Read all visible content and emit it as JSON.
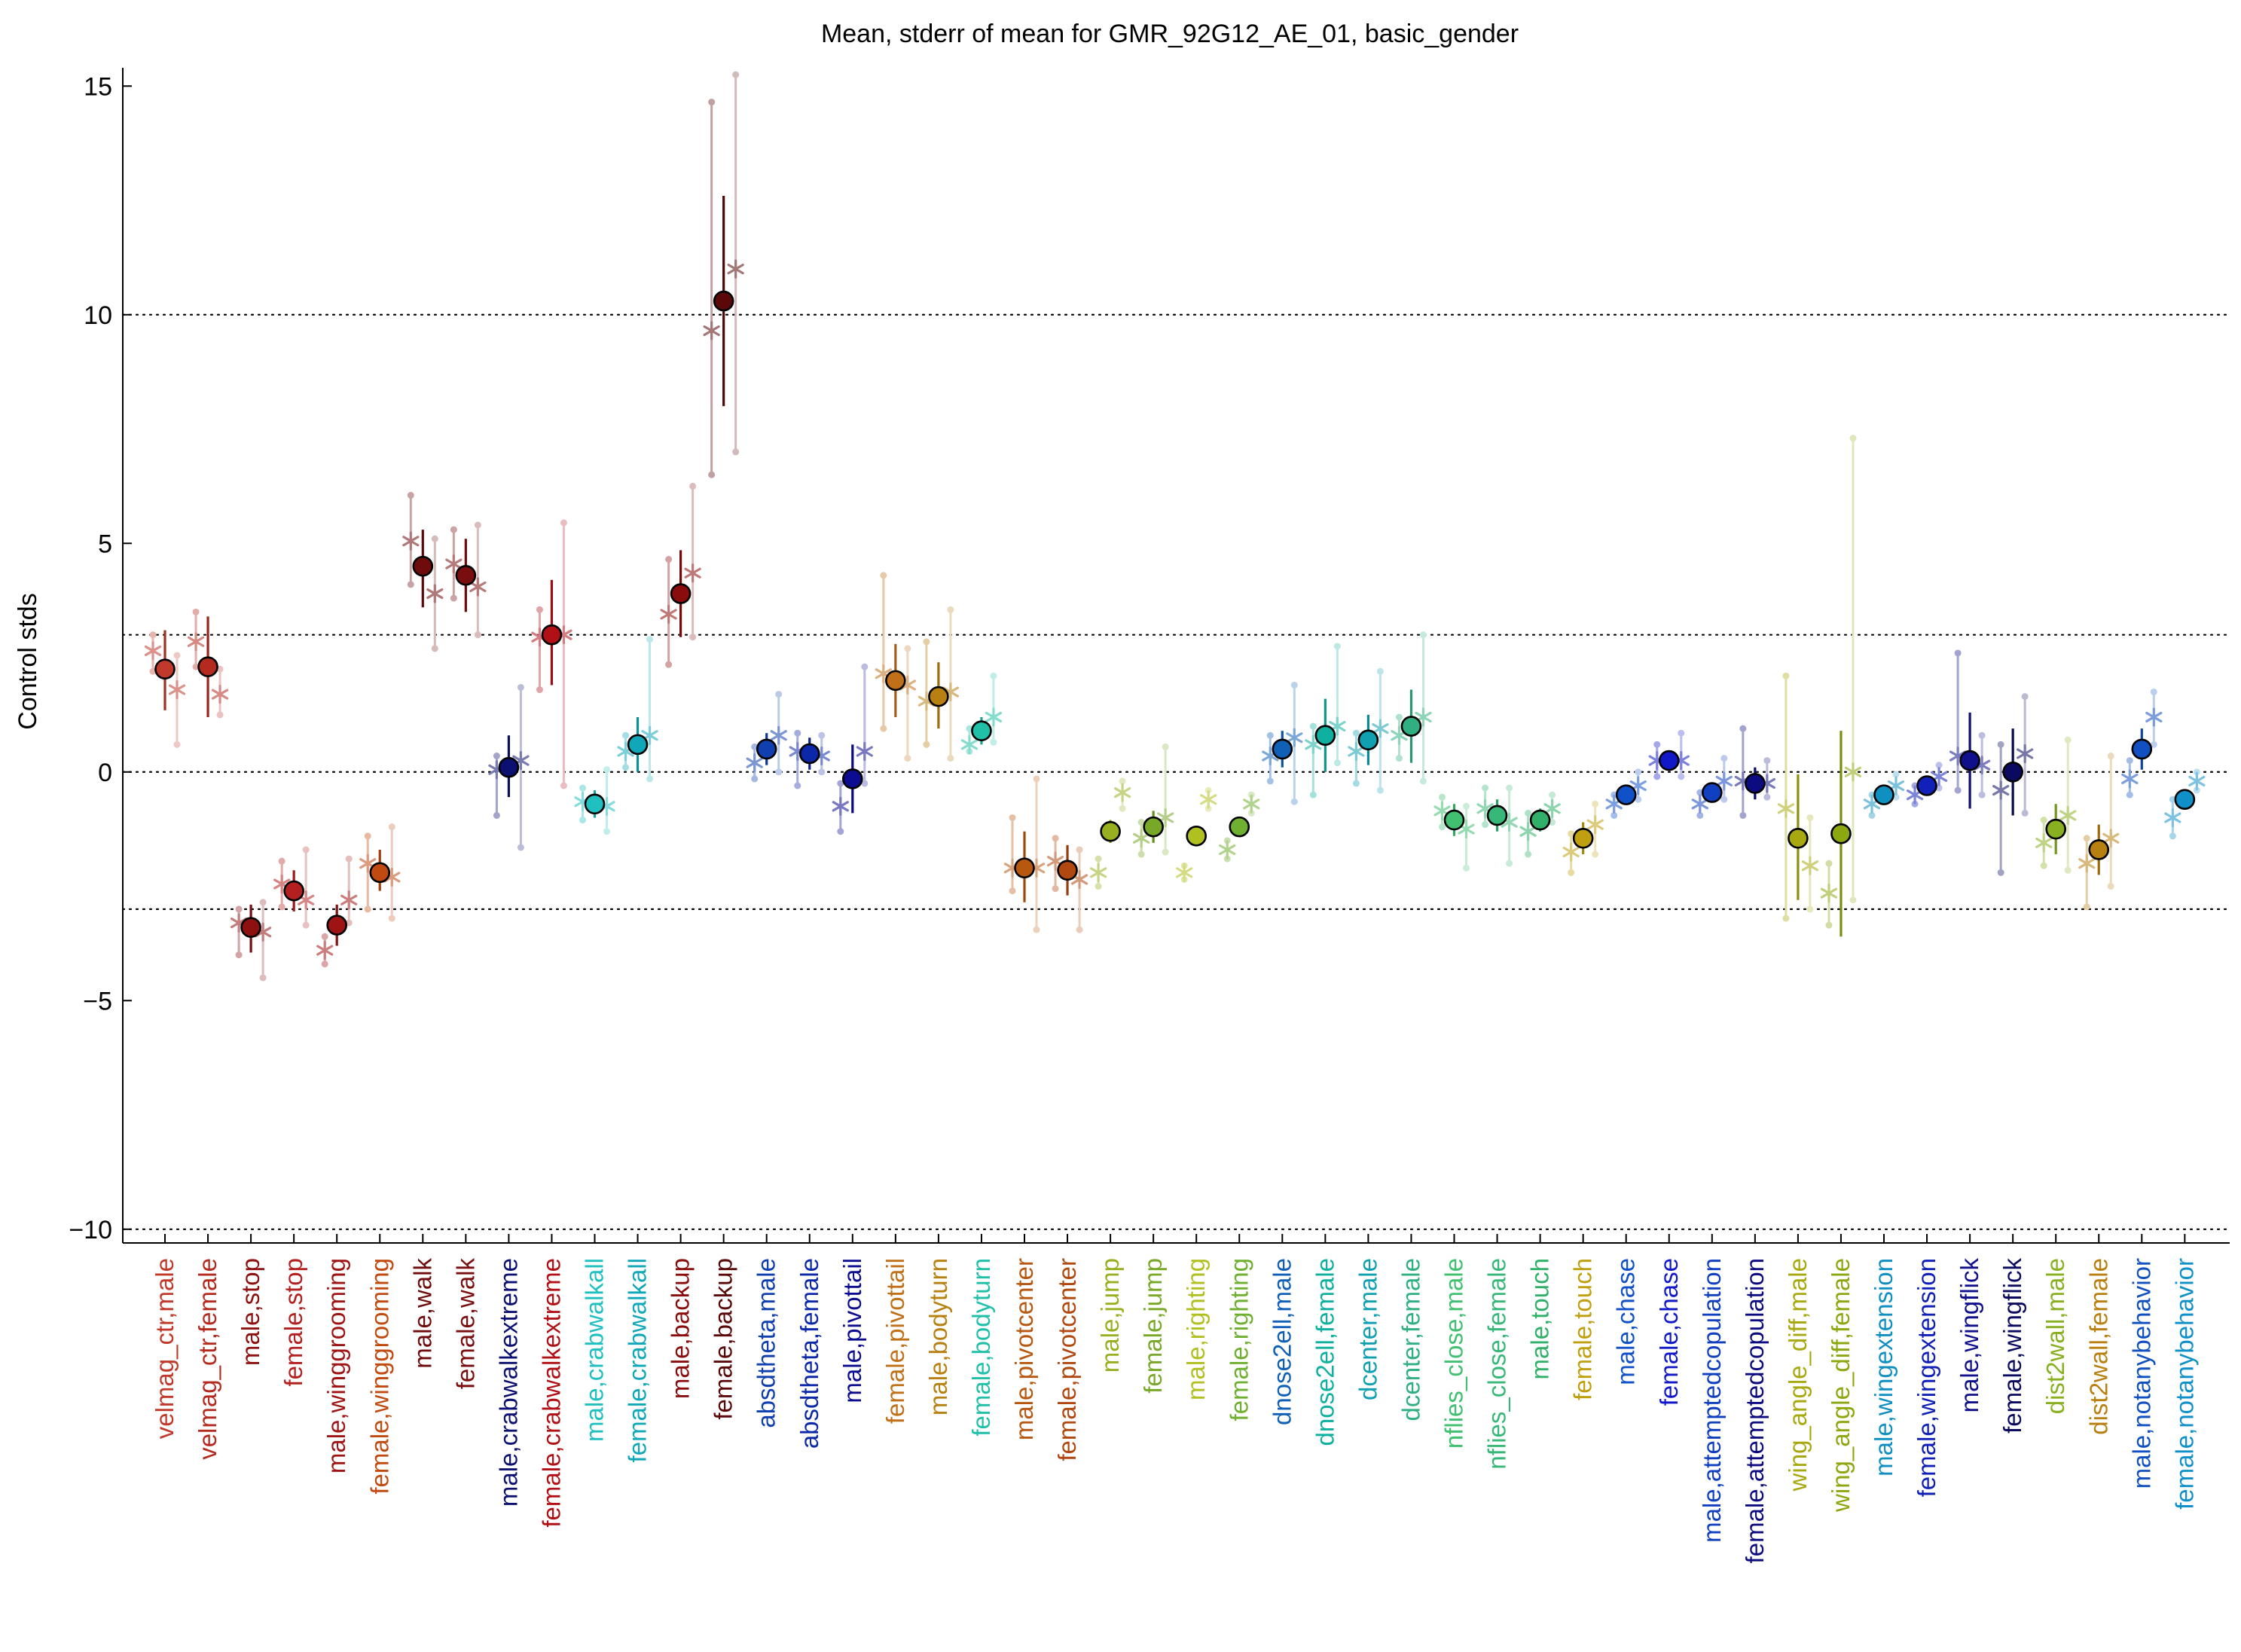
{
  "chart_data": {
    "type": "scatter",
    "title": "Mean, stderr of mean for GMR_92G12_AE_01, basic_gender",
    "xlabel": "",
    "ylabel": "Control stds",
    "ylim": [
      -10.3,
      15.4
    ],
    "yticks": [
      -10,
      -5,
      0,
      5,
      10,
      15
    ],
    "grid": "horizontal dotted lines at -10, -3, 0, 3, 10",
    "ref_lines": [
      -10,
      -3,
      0,
      3,
      10
    ],
    "legend": "none",
    "categories": [
      {
        "label": "velmag_ctr,male",
        "color": "#c0392b",
        "mean": 2.25,
        "lo": 1.35,
        "hi": 3.1,
        "sub": [
          [
            2.65,
            2.2,
            3.0
          ],
          [
            1.8,
            0.6,
            2.55
          ]
        ]
      },
      {
        "label": "velmag_ctr,female",
        "color": "#b52a1e",
        "mean": 2.3,
        "lo": 1.2,
        "hi": 3.4,
        "sub": [
          [
            2.85,
            2.3,
            3.5
          ],
          [
            1.7,
            1.25,
            2.25
          ]
        ]
      },
      {
        "label": "male,stop",
        "color": "#8e1010",
        "mean": -3.4,
        "lo": -3.95,
        "hi": -2.9,
        "sub": [
          [
            -3.3,
            -4.0,
            -3.0
          ],
          [
            -3.5,
            -4.5,
            -2.85
          ]
        ]
      },
      {
        "label": "female,stop",
        "color": "#b42020",
        "mean": -2.6,
        "lo": -3.05,
        "hi": -2.15,
        "sub": [
          [
            -2.45,
            -2.95,
            -1.95
          ],
          [
            -2.8,
            -3.35,
            -1.7
          ]
        ]
      },
      {
        "label": "male,winggrooming",
        "color": "#9e1414",
        "mean": -3.35,
        "lo": -3.8,
        "hi": -2.9,
        "sub": [
          [
            -3.9,
            -4.2,
            -3.6
          ],
          [
            -2.8,
            -3.3,
            -1.9
          ]
        ]
      },
      {
        "label": "female,winggrooming",
        "color": "#c04a10",
        "mean": -2.2,
        "lo": -2.6,
        "hi": -1.7,
        "sub": [
          [
            -2.0,
            -3.0,
            -1.4
          ],
          [
            -2.3,
            -3.2,
            -1.2
          ]
        ]
      },
      {
        "label": "male,walk",
        "color": "#6e0c0c",
        "mean": 4.5,
        "lo": 3.6,
        "hi": 5.3,
        "sub": [
          [
            5.05,
            4.1,
            6.05
          ],
          [
            3.9,
            2.7,
            5.1
          ]
        ]
      },
      {
        "label": "female,walk",
        "color": "#7a0e0e",
        "mean": 4.3,
        "lo": 3.5,
        "hi": 5.1,
        "sub": [
          [
            4.55,
            3.8,
            5.3
          ],
          [
            4.05,
            3.0,
            5.4
          ]
        ]
      },
      {
        "label": "male,crabwalkextreme",
        "color": "#0c1070",
        "mean": 0.1,
        "lo": -0.55,
        "hi": 0.8,
        "sub": [
          [
            0.05,
            -0.95,
            0.35
          ],
          [
            0.25,
            -1.65,
            1.85
          ]
        ]
      },
      {
        "label": "female,crabwalkextreme",
        "color": "#b01016",
        "mean": 3.0,
        "lo": 1.9,
        "hi": 4.2,
        "sub": [
          [
            2.95,
            1.8,
            3.55
          ],
          [
            3.0,
            -0.3,
            5.45
          ]
        ]
      },
      {
        "label": "male,crabwalkall",
        "color": "#20c0c0",
        "mean": -0.7,
        "lo": -1.0,
        "hi": -0.4,
        "sub": [
          [
            -0.65,
            -1.05,
            -0.35
          ],
          [
            -0.75,
            -1.3,
            0.05
          ]
        ]
      },
      {
        "label": "female,crabwalkall",
        "color": "#10a8b8",
        "mean": 0.6,
        "lo": 0.0,
        "hi": 1.2,
        "sub": [
          [
            0.45,
            0.1,
            0.8
          ],
          [
            0.8,
            -0.15,
            2.9
          ]
        ]
      },
      {
        "label": "male,backup",
        "color": "#8a0c0c",
        "mean": 3.9,
        "lo": 2.95,
        "hi": 4.85,
        "sub": [
          [
            3.45,
            2.35,
            4.65
          ],
          [
            4.35,
            2.95,
            6.25
          ]
        ]
      },
      {
        "label": "female,backup",
        "color": "#5a0808",
        "mean": 10.3,
        "lo": 8.0,
        "hi": 12.6,
        "sub": [
          [
            9.65,
            6.5,
            14.65
          ],
          [
            11.0,
            7.0,
            15.25
          ]
        ]
      },
      {
        "label": "absdtheta,male",
        "color": "#1040b0",
        "mean": 0.5,
        "lo": 0.15,
        "hi": 0.85,
        "sub": [
          [
            0.2,
            -0.15,
            0.55
          ],
          [
            0.8,
            0.0,
            1.7
          ]
        ]
      },
      {
        "label": "absdtheta,female",
        "color": "#0c28a8",
        "mean": 0.4,
        "lo": 0.05,
        "hi": 0.75,
        "sub": [
          [
            0.45,
            -0.3,
            0.85
          ],
          [
            0.35,
            0.0,
            0.8
          ]
        ]
      },
      {
        "label": "male,pivottail",
        "color": "#0c0c90",
        "mean": -0.15,
        "lo": -0.9,
        "hi": 0.6,
        "sub": [
          [
            -0.75,
            -1.3,
            -0.25
          ],
          [
            0.45,
            -0.25,
            2.3
          ]
        ]
      },
      {
        "label": "female,pivottail",
        "color": "#c07018",
        "mean": 2.0,
        "lo": 1.2,
        "hi": 2.8,
        "sub": [
          [
            2.15,
            0.95,
            4.3
          ],
          [
            1.9,
            0.3,
            2.7
          ]
        ]
      },
      {
        "label": "male,bodyturn",
        "color": "#b88010",
        "mean": 1.65,
        "lo": 0.95,
        "hi": 2.4,
        "sub": [
          [
            1.55,
            0.6,
            2.85
          ],
          [
            1.75,
            0.3,
            3.55
          ]
        ]
      },
      {
        "label": "female,bodyturn",
        "color": "#20c0a8",
        "mean": 0.9,
        "lo": 0.6,
        "hi": 1.2,
        "sub": [
          [
            0.6,
            0.45,
            0.95
          ],
          [
            1.2,
            0.65,
            2.1
          ]
        ]
      },
      {
        "label": "male,pivotcenter",
        "color": "#b85810",
        "mean": -2.1,
        "lo": -2.85,
        "hi": -1.3,
        "sub": [
          [
            -2.1,
            -2.6,
            -1.0
          ],
          [
            -2.1,
            -3.45,
            -0.15
          ]
        ]
      },
      {
        "label": "female,pivotcenter",
        "color": "#b04810",
        "mean": -2.15,
        "lo": -2.7,
        "hi": -1.6,
        "sub": [
          [
            -1.95,
            -2.55,
            -1.45
          ],
          [
            -2.35,
            -3.45,
            -1.7
          ]
        ]
      },
      {
        "label": "male,jump",
        "color": "#98b020",
        "mean": -1.3,
        "lo": -1.55,
        "hi": -1.05,
        "sub": [
          [
            -2.2,
            -2.5,
            -1.9
          ],
          [
            -0.45,
            -0.8,
            -0.2
          ]
        ]
      },
      {
        "label": "female,jump",
        "color": "#78a828",
        "mean": -1.2,
        "lo": -1.55,
        "hi": -0.85,
        "sub": [
          [
            -1.45,
            -1.8,
            -1.1
          ],
          [
            -1.0,
            -1.75,
            0.55
          ]
        ]
      },
      {
        "label": "male,righting",
        "color": "#b0c020",
        "mean": -1.4,
        "lo": -1.6,
        "hi": -1.2,
        "sub": [
          [
            -2.2,
            -2.35,
            -2.05
          ],
          [
            -0.6,
            -0.8,
            -0.4
          ]
        ]
      },
      {
        "label": "female,righting",
        "color": "#70b030",
        "mean": -1.2,
        "lo": -1.4,
        "hi": -1.0,
        "sub": [
          [
            -1.7,
            -1.9,
            -1.5
          ],
          [
            -0.7,
            -0.9,
            -0.5
          ]
        ]
      },
      {
        "label": "dnose2ell,male",
        "color": "#1060b8",
        "mean": 0.5,
        "lo": 0.1,
        "hi": 0.9,
        "sub": [
          [
            0.35,
            -0.2,
            0.8
          ],
          [
            0.75,
            -0.65,
            1.9
          ]
        ]
      },
      {
        "label": "dnose2ell,female",
        "color": "#10b0a0",
        "mean": 0.8,
        "lo": 0.0,
        "hi": 1.6,
        "sub": [
          [
            0.6,
            -0.5,
            1.0
          ],
          [
            1.0,
            0.2,
            2.75
          ]
        ]
      },
      {
        "label": "dcenter,male",
        "color": "#10a0b0",
        "mean": 0.7,
        "lo": 0.15,
        "hi": 1.25,
        "sub": [
          [
            0.45,
            -0.25,
            0.85
          ],
          [
            0.95,
            -0.4,
            2.2
          ]
        ]
      },
      {
        "label": "dcenter,female",
        "color": "#30b080",
        "mean": 1.0,
        "lo": 0.2,
        "hi": 1.8,
        "sub": [
          [
            0.8,
            0.3,
            1.2
          ],
          [
            1.2,
            -0.2,
            3.0
          ]
        ]
      },
      {
        "label": "nflies_close,male",
        "color": "#40c070",
        "mean": -1.05,
        "lo": -1.4,
        "hi": -0.7,
        "sub": [
          [
            -0.85,
            -1.2,
            -0.55
          ],
          [
            -1.25,
            -2.1,
            -0.75
          ]
        ]
      },
      {
        "label": "nflies_close,female",
        "color": "#38b878",
        "mean": -0.95,
        "lo": -1.3,
        "hi": -0.6,
        "sub": [
          [
            -0.8,
            -1.15,
            -0.35
          ],
          [
            -1.1,
            -2.0,
            -0.35
          ]
        ]
      },
      {
        "label": "male,touch",
        "color": "#30b068",
        "mean": -1.05,
        "lo": -1.3,
        "hi": -0.8,
        "sub": [
          [
            -1.3,
            -1.8,
            -0.9
          ],
          [
            -0.8,
            -1.1,
            -0.5
          ]
        ]
      },
      {
        "label": "female,touch",
        "color": "#c0a010",
        "mean": -1.45,
        "lo": -1.8,
        "hi": -1.1,
        "sub": [
          [
            -1.75,
            -2.2,
            -1.35
          ],
          [
            -1.15,
            -1.8,
            -0.7
          ]
        ]
      },
      {
        "label": "male,chase",
        "color": "#1050c8",
        "mean": -0.5,
        "lo": -0.7,
        "hi": -0.3,
        "sub": [
          [
            -0.7,
            -0.95,
            -0.5
          ],
          [
            -0.3,
            -0.6,
            0.0
          ]
        ]
      },
      {
        "label": "female,chase",
        "color": "#1018c8",
        "mean": 0.25,
        "lo": 0.05,
        "hi": 0.45,
        "sub": [
          [
            0.25,
            -0.1,
            0.6
          ],
          [
            0.25,
            -0.1,
            0.85
          ]
        ]
      },
      {
        "label": "male,attemptedcopulation",
        "color": "#1040c0",
        "mean": -0.45,
        "lo": -0.65,
        "hi": -0.25,
        "sub": [
          [
            -0.7,
            -0.95,
            -0.45
          ],
          [
            -0.2,
            -0.6,
            0.3
          ]
        ]
      },
      {
        "label": "female,attemptedcopulation",
        "color": "#0c0c80",
        "mean": -0.25,
        "lo": -0.6,
        "hi": 0.1,
        "sub": [
          [
            -0.2,
            -0.95,
            0.95
          ],
          [
            -0.25,
            -0.55,
            0.25
          ]
        ]
      },
      {
        "label": "wing_angle_diff,male",
        "color": "#a8a810",
        "mean": -1.45,
        "lo": -2.8,
        "hi": -0.05,
        "sub": [
          [
            -0.8,
            -3.2,
            2.1
          ],
          [
            -2.05,
            -3.0,
            -1.0
          ]
        ]
      },
      {
        "label": "wing_angle_diff,female",
        "color": "#8ca810",
        "mean": -1.35,
        "lo": -3.6,
        "hi": 0.9,
        "sub": [
          [
            -2.65,
            -3.35,
            -2.0
          ],
          [
            0.0,
            -2.8,
            7.3
          ]
        ]
      },
      {
        "label": "male,wingextension",
        "color": "#1090c0",
        "mean": -0.5,
        "lo": -0.7,
        "hi": -0.3,
        "sub": [
          [
            -0.7,
            -0.95,
            -0.5
          ],
          [
            -0.3,
            -0.55,
            -0.05
          ]
        ]
      },
      {
        "label": "female,wingextension",
        "color": "#1020b8",
        "mean": -0.3,
        "lo": -0.45,
        "hi": -0.15,
        "sub": [
          [
            -0.5,
            -0.7,
            -0.3
          ],
          [
            -0.1,
            -0.35,
            0.15
          ]
        ]
      },
      {
        "label": "male,wingflick",
        "color": "#10108c",
        "mean": 0.25,
        "lo": -0.8,
        "hi": 1.3,
        "sub": [
          [
            0.35,
            -0.4,
            2.6
          ],
          [
            0.15,
            -0.5,
            0.8
          ]
        ]
      },
      {
        "label": "female,wingflick",
        "color": "#0a0a60",
        "mean": 0.0,
        "lo": -0.95,
        "hi": 0.95,
        "sub": [
          [
            -0.4,
            -2.2,
            0.6
          ],
          [
            0.4,
            -0.9,
            1.65
          ]
        ]
      },
      {
        "label": "dist2wall,male",
        "color": "#88b020",
        "mean": -1.25,
        "lo": -1.8,
        "hi": -0.7,
        "sub": [
          [
            -1.55,
            -2.05,
            -1.05
          ],
          [
            -0.95,
            -2.15,
            0.7
          ]
        ]
      },
      {
        "label": "dist2wall,female",
        "color": "#b88010",
        "mean": -1.7,
        "lo": -2.25,
        "hi": -1.15,
        "sub": [
          [
            -2.0,
            -2.95,
            -1.45
          ],
          [
            -1.45,
            -2.5,
            0.35
          ]
        ]
      },
      {
        "label": "male,notanybehavior",
        "color": "#1050c0",
        "mean": 0.5,
        "lo": 0.05,
        "hi": 0.95,
        "sub": [
          [
            -0.15,
            -0.5,
            0.25
          ],
          [
            1.2,
            0.6,
            1.75
          ]
        ]
      },
      {
        "label": "female,notanybehavior",
        "color": "#1090c8",
        "mean": -0.6,
        "lo": -0.8,
        "hi": -0.4,
        "sub": [
          [
            -1.0,
            -1.4,
            -0.6
          ],
          [
            -0.2,
            -0.4,
            0.0
          ]
        ]
      }
    ]
  }
}
